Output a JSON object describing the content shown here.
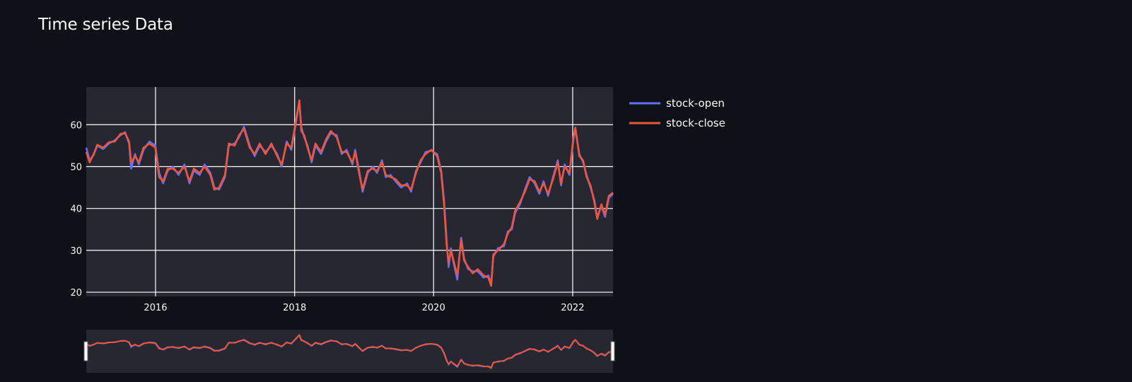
{
  "page": {
    "title": "Time series Data"
  },
  "colors": {
    "background": "#0e1117",
    "plot_background": "#262730",
    "grid": "#ffffff",
    "open": "#636efa",
    "close": "#ef553b"
  },
  "chart_data": {
    "type": "line",
    "title": "Time series Data",
    "xlabel": "",
    "ylabel": "",
    "x_axis_type": "date",
    "xlim": [
      "2015-01-02",
      "2022-08-01"
    ],
    "ylim": [
      19,
      69
    ],
    "y_ticks": [
      20,
      30,
      40,
      50,
      60
    ],
    "x_ticks": [
      {
        "date": "2016-01-01",
        "label": "2016"
      },
      {
        "date": "2018-01-01",
        "label": "2018"
      },
      {
        "date": "2020-01-01",
        "label": "2020"
      },
      {
        "date": "2022-01-01",
        "label": "2022"
      }
    ],
    "grid": true,
    "legend_position": "top-right-outside",
    "range_slider": true,
    "series": [
      {
        "name": "stock-open",
        "color": "#636efa",
        "points": [
          [
            "2015-01-02",
            54.5
          ],
          [
            "2015-01-20",
            51.5
          ],
          [
            "2015-02-10",
            52.8
          ],
          [
            "2015-03-01",
            55.0
          ],
          [
            "2015-04-01",
            54.2
          ],
          [
            "2015-05-01",
            55.5
          ],
          [
            "2015-06-01",
            56.3
          ],
          [
            "2015-07-01",
            57.5
          ],
          [
            "2015-07-25",
            58.2
          ],
          [
            "2015-08-15",
            55.5
          ],
          [
            "2015-08-26",
            49.5
          ],
          [
            "2015-09-15",
            53.0
          ],
          [
            "2015-10-05",
            50.5
          ],
          [
            "2015-10-30",
            54.0
          ],
          [
            "2015-11-30",
            56.0
          ],
          [
            "2015-12-31",
            55.0
          ],
          [
            "2016-01-20",
            48.5
          ],
          [
            "2016-02-10",
            46.0
          ],
          [
            "2016-03-05",
            49.0
          ],
          [
            "2016-04-01",
            50.0
          ],
          [
            "2016-05-01",
            48.0
          ],
          [
            "2016-06-01",
            50.5
          ],
          [
            "2016-06-27",
            46.0
          ],
          [
            "2016-07-20",
            49.0
          ],
          [
            "2016-08-20",
            48.0
          ],
          [
            "2016-09-15",
            50.5
          ],
          [
            "2016-10-15",
            48.5
          ],
          [
            "2016-11-05",
            45.0
          ],
          [
            "2016-11-30",
            44.5
          ],
          [
            "2016-12-31",
            47.5
          ],
          [
            "2017-01-20",
            55.0
          ],
          [
            "2017-02-20",
            55.5
          ],
          [
            "2017-03-15",
            57.0
          ],
          [
            "2017-04-10",
            59.5
          ],
          [
            "2017-05-10",
            55.0
          ],
          [
            "2017-06-05",
            52.5
          ],
          [
            "2017-07-01",
            55.0
          ],
          [
            "2017-08-01",
            53.5
          ],
          [
            "2017-09-01",
            55.0
          ],
          [
            "2017-10-01",
            53.0
          ],
          [
            "2017-10-25",
            50.0
          ],
          [
            "2017-11-20",
            56.0
          ],
          [
            "2017-12-15",
            54.0
          ],
          [
            "2018-01-10",
            61.0
          ],
          [
            "2018-01-26",
            65.5
          ],
          [
            "2018-02-05",
            59.5
          ],
          [
            "2018-02-20",
            57.0
          ],
          [
            "2018-03-10",
            55.0
          ],
          [
            "2018-03-31",
            51.0
          ],
          [
            "2018-04-20",
            55.0
          ],
          [
            "2018-05-20",
            53.0
          ],
          [
            "2018-06-15",
            56.0
          ],
          [
            "2018-07-10",
            58.0
          ],
          [
            "2018-08-10",
            57.5
          ],
          [
            "2018-09-05",
            53.0
          ],
          [
            "2018-10-01",
            54.0
          ],
          [
            "2018-11-01",
            50.5
          ],
          [
            "2018-11-15",
            54.0
          ],
          [
            "2018-12-10",
            48.0
          ],
          [
            "2018-12-24",
            44.0
          ],
          [
            "2019-01-20",
            48.5
          ],
          [
            "2019-02-15",
            50.0
          ],
          [
            "2019-03-10",
            48.5
          ],
          [
            "2019-04-05",
            51.5
          ],
          [
            "2019-04-25",
            47.5
          ],
          [
            "2019-05-20",
            48.0
          ],
          [
            "2019-06-15",
            46.5
          ],
          [
            "2019-07-15",
            45.0
          ],
          [
            "2019-08-15",
            46.0
          ],
          [
            "2019-09-05",
            44.0
          ],
          [
            "2019-10-01",
            49.0
          ],
          [
            "2019-10-25",
            51.0
          ],
          [
            "2019-11-20",
            53.5
          ],
          [
            "2019-12-20",
            53.8
          ],
          [
            "2020-01-20",
            53.0
          ],
          [
            "2020-02-10",
            49.0
          ],
          [
            "2020-02-25",
            42.0
          ],
          [
            "2020-03-10",
            32.0
          ],
          [
            "2020-03-20",
            26.0
          ],
          [
            "2020-04-01",
            30.5
          ],
          [
            "2020-04-15",
            27.0
          ],
          [
            "2020-05-05",
            23.0
          ],
          [
            "2020-05-25",
            33.0
          ],
          [
            "2020-06-10",
            28.0
          ],
          [
            "2020-07-01",
            25.5
          ],
          [
            "2020-07-25",
            25.0
          ],
          [
            "2020-08-20",
            25.0
          ],
          [
            "2020-09-20",
            23.5
          ],
          [
            "2020-10-15",
            24.0
          ],
          [
            "2020-10-30",
            22.0
          ],
          [
            "2020-11-10",
            28.5
          ],
          [
            "2020-12-05",
            30.5
          ],
          [
            "2021-01-05",
            31.0
          ],
          [
            "2021-01-25",
            34.5
          ],
          [
            "2021-02-15",
            35.0
          ],
          [
            "2021-03-05",
            39.0
          ],
          [
            "2021-03-30",
            41.0
          ],
          [
            "2021-04-25",
            44.5
          ],
          [
            "2021-05-20",
            47.5
          ],
          [
            "2021-06-15",
            46.0
          ],
          [
            "2021-07-10",
            43.5
          ],
          [
            "2021-08-01",
            46.5
          ],
          [
            "2021-08-25",
            43.0
          ],
          [
            "2021-09-20",
            47.5
          ],
          [
            "2021-10-15",
            51.5
          ],
          [
            "2021-11-01",
            45.5
          ],
          [
            "2021-11-20",
            50.5
          ],
          [
            "2021-12-15",
            48.0
          ],
          [
            "2022-01-05",
            56.5
          ],
          [
            "2022-01-15",
            59.0
          ],
          [
            "2022-02-05",
            53.0
          ],
          [
            "2022-02-25",
            51.0
          ],
          [
            "2022-03-15",
            48.0
          ],
          [
            "2022-04-05",
            45.0
          ],
          [
            "2022-04-25",
            42.0
          ],
          [
            "2022-05-10",
            38.0
          ],
          [
            "2022-06-01",
            40.5
          ],
          [
            "2022-06-20",
            38.0
          ],
          [
            "2022-07-10",
            42.5
          ],
          [
            "2022-08-01",
            43.5
          ]
        ]
      },
      {
        "name": "stock-close",
        "color": "#ef553b",
        "points": [
          [
            "2015-01-02",
            53.5
          ],
          [
            "2015-01-20",
            51.0
          ],
          [
            "2015-02-10",
            53.0
          ],
          [
            "2015-03-01",
            55.2
          ],
          [
            "2015-04-01",
            54.5
          ],
          [
            "2015-05-01",
            55.8
          ],
          [
            "2015-06-01",
            56.0
          ],
          [
            "2015-07-01",
            57.8
          ],
          [
            "2015-07-25",
            58.0
          ],
          [
            "2015-08-15",
            56.0
          ],
          [
            "2015-08-26",
            51.0
          ],
          [
            "2015-09-15",
            52.5
          ],
          [
            "2015-10-05",
            51.0
          ],
          [
            "2015-10-30",
            54.5
          ],
          [
            "2015-11-30",
            55.5
          ],
          [
            "2015-12-31",
            54.5
          ],
          [
            "2016-01-20",
            47.5
          ],
          [
            "2016-02-10",
            46.5
          ],
          [
            "2016-03-05",
            49.5
          ],
          [
            "2016-04-01",
            49.5
          ],
          [
            "2016-05-01",
            48.5
          ],
          [
            "2016-06-01",
            50.0
          ],
          [
            "2016-06-27",
            46.5
          ],
          [
            "2016-07-20",
            49.5
          ],
          [
            "2016-08-20",
            48.5
          ],
          [
            "2016-09-15",
            50.0
          ],
          [
            "2016-10-15",
            48.0
          ],
          [
            "2016-11-05",
            44.5
          ],
          [
            "2016-11-30",
            45.0
          ],
          [
            "2016-12-31",
            48.0
          ],
          [
            "2017-01-20",
            55.5
          ],
          [
            "2017-02-20",
            55.0
          ],
          [
            "2017-03-15",
            57.5
          ],
          [
            "2017-04-10",
            59.0
          ],
          [
            "2017-05-10",
            54.5
          ],
          [
            "2017-06-05",
            53.0
          ],
          [
            "2017-07-01",
            55.5
          ],
          [
            "2017-08-01",
            53.0
          ],
          [
            "2017-09-01",
            55.5
          ],
          [
            "2017-10-01",
            52.5
          ],
          [
            "2017-10-25",
            50.5
          ],
          [
            "2017-11-20",
            55.5
          ],
          [
            "2017-12-15",
            54.5
          ],
          [
            "2018-01-10",
            61.5
          ],
          [
            "2018-01-26",
            65.8
          ],
          [
            "2018-02-05",
            58.5
          ],
          [
            "2018-02-20",
            57.5
          ],
          [
            "2018-03-10",
            54.5
          ],
          [
            "2018-03-31",
            51.5
          ],
          [
            "2018-04-20",
            55.5
          ],
          [
            "2018-05-20",
            53.5
          ],
          [
            "2018-06-15",
            56.5
          ],
          [
            "2018-07-10",
            58.5
          ],
          [
            "2018-08-10",
            57.0
          ],
          [
            "2018-09-05",
            53.5
          ],
          [
            "2018-10-01",
            53.5
          ],
          [
            "2018-11-01",
            51.0
          ],
          [
            "2018-11-15",
            53.5
          ],
          [
            "2018-12-10",
            47.5
          ],
          [
            "2018-12-24",
            44.5
          ],
          [
            "2019-01-20",
            49.0
          ],
          [
            "2019-02-15",
            49.5
          ],
          [
            "2019-03-10",
            49.0
          ],
          [
            "2019-04-05",
            51.0
          ],
          [
            "2019-04-25",
            48.0
          ],
          [
            "2019-05-20",
            47.5
          ],
          [
            "2019-06-15",
            47.0
          ],
          [
            "2019-07-15",
            45.5
          ],
          [
            "2019-08-15",
            45.5
          ],
          [
            "2019-09-05",
            44.5
          ],
          [
            "2019-10-01",
            48.5
          ],
          [
            "2019-10-25",
            51.5
          ],
          [
            "2019-11-20",
            53.0
          ],
          [
            "2019-12-20",
            54.0
          ],
          [
            "2020-01-20",
            52.5
          ],
          [
            "2020-02-10",
            48.5
          ],
          [
            "2020-02-25",
            41.0
          ],
          [
            "2020-03-10",
            31.0
          ],
          [
            "2020-03-20",
            27.0
          ],
          [
            "2020-04-01",
            30.0
          ],
          [
            "2020-04-15",
            27.5
          ],
          [
            "2020-05-05",
            24.0
          ],
          [
            "2020-05-25",
            32.5
          ],
          [
            "2020-06-10",
            27.5
          ],
          [
            "2020-07-01",
            26.0
          ],
          [
            "2020-07-25",
            24.5
          ],
          [
            "2020-08-20",
            25.5
          ],
          [
            "2020-09-20",
            24.0
          ],
          [
            "2020-10-15",
            23.5
          ],
          [
            "2020-10-30",
            21.5
          ],
          [
            "2020-11-10",
            29.0
          ],
          [
            "2020-12-05",
            30.0
          ],
          [
            "2021-01-05",
            31.5
          ],
          [
            "2021-01-25",
            34.0
          ],
          [
            "2021-02-15",
            35.5
          ],
          [
            "2021-03-05",
            39.5
          ],
          [
            "2021-03-30",
            41.5
          ],
          [
            "2021-04-25",
            44.0
          ],
          [
            "2021-05-20",
            47.0
          ],
          [
            "2021-06-15",
            46.5
          ],
          [
            "2021-07-10",
            44.0
          ],
          [
            "2021-08-01",
            46.0
          ],
          [
            "2021-08-25",
            43.5
          ],
          [
            "2021-09-20",
            47.0
          ],
          [
            "2021-10-15",
            51.0
          ],
          [
            "2021-11-01",
            46.0
          ],
          [
            "2021-11-20",
            50.0
          ],
          [
            "2021-12-15",
            48.5
          ],
          [
            "2022-01-05",
            57.0
          ],
          [
            "2022-01-15",
            59.3
          ],
          [
            "2022-02-05",
            52.5
          ],
          [
            "2022-02-25",
            51.5
          ],
          [
            "2022-03-15",
            47.5
          ],
          [
            "2022-04-05",
            45.5
          ],
          [
            "2022-04-25",
            41.5
          ],
          [
            "2022-05-10",
            37.5
          ],
          [
            "2022-06-01",
            41.0
          ],
          [
            "2022-06-20",
            38.5
          ],
          [
            "2022-07-10",
            43.0
          ],
          [
            "2022-08-01",
            43.8
          ]
        ]
      }
    ]
  }
}
